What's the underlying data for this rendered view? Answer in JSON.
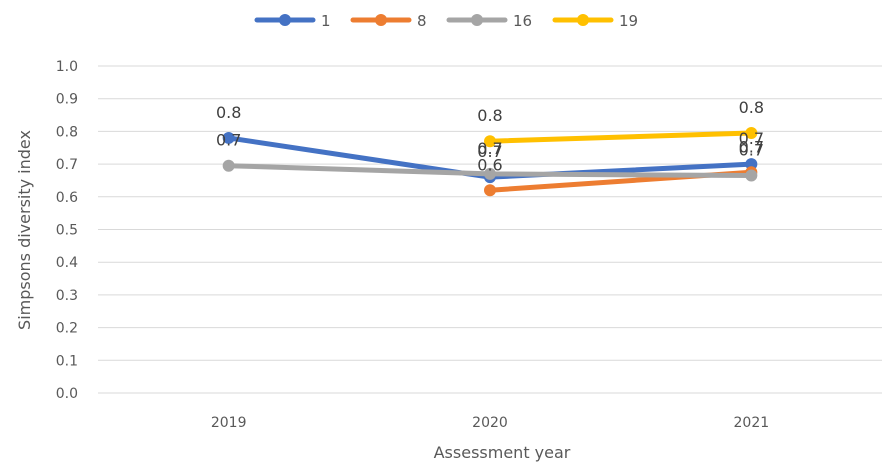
{
  "chart_data": {
    "type": "line",
    "title": "",
    "xlabel": "Assessment year",
    "ylabel": "Simpsons diversity index",
    "categories": [
      "2019",
      "2020",
      "2021"
    ],
    "ylim": [
      0,
      1
    ],
    "yticks": [
      "0.0",
      "0.1",
      "0.2",
      "0.3",
      "0.4",
      "0.5",
      "0.6",
      "0.7",
      "0.8",
      "0.9",
      "1.0"
    ],
    "grid": true,
    "legend_position": "top",
    "series": [
      {
        "name": "1",
        "color": "#4472c4",
        "values": [
          0.78,
          0.66,
          0.7
        ],
        "data_labels": [
          "0.8",
          "0.7",
          "0.7"
        ]
      },
      {
        "name": "8",
        "color": "#ed7d31",
        "values": [
          null,
          0.62,
          0.675
        ],
        "data_labels": [
          null,
          "0.6",
          "0.7"
        ]
      },
      {
        "name": "16",
        "color": "#a5a5a5",
        "values": [
          0.695,
          0.67,
          0.665
        ],
        "data_labels": [
          "0.7",
          "0.7",
          "0.7"
        ]
      },
      {
        "name": "19",
        "color": "#ffc000",
        "values": [
          null,
          0.77,
          0.795
        ],
        "data_labels": [
          null,
          "0.8",
          "0.8"
        ]
      }
    ]
  }
}
